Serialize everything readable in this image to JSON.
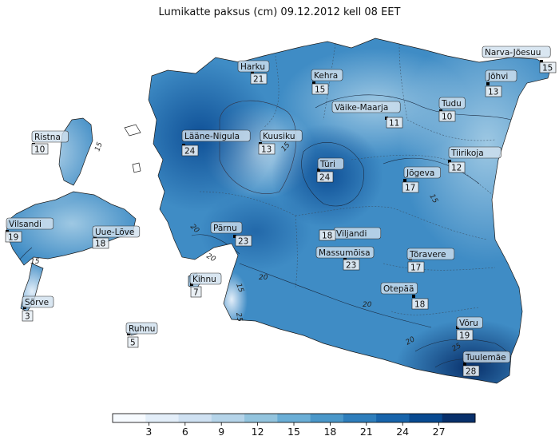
{
  "title": "Lumikatte paksus (cm) 09.12.2012 kell 08 EET",
  "colorbar": {
    "ticks": [
      "3",
      "6",
      "9",
      "12",
      "15",
      "18",
      "21",
      "24",
      "27"
    ],
    "colors": [
      "#f7fbff",
      "#e3eef9",
      "#cfe1f2",
      "#b5d4e9",
      "#93c4de",
      "#6aaed6",
      "#4a97c9",
      "#2e7ebc",
      "#1764ab",
      "#084a91",
      "#08306b"
    ]
  },
  "contour_labels": [
    "15",
    "15",
    "15",
    "15",
    "20",
    "20",
    "20",
    "20",
    "15",
    "20",
    "25",
    "25"
  ],
  "stations": [
    {
      "name": "Harku",
      "value": "21"
    },
    {
      "name": "Kehra",
      "value": "15"
    },
    {
      "name": "Narva-Jõesuu",
      "value": "15"
    },
    {
      "name": "Jõhvi",
      "value": "13"
    },
    {
      "name": "Väike-Maarja",
      "value": "11"
    },
    {
      "name": "Tudu",
      "value": "10"
    },
    {
      "name": "Ristna",
      "value": "10"
    },
    {
      "name": "Lääne-Nigula",
      "value": "24"
    },
    {
      "name": "Kuusiku",
      "value": "13"
    },
    {
      "name": "Türi",
      "value": "24"
    },
    {
      "name": "Tiirikoja",
      "value": "12"
    },
    {
      "name": "Jõgeva",
      "value": "17"
    },
    {
      "name": "Vilsandi",
      "value": "19"
    },
    {
      "name": "Uue-Lõve",
      "value": "18"
    },
    {
      "name": "Pärnu",
      "value": "23"
    },
    {
      "name": "Viljandi",
      "value": "18"
    },
    {
      "name": "Massumõisa",
      "value": "23"
    },
    {
      "name": "Tõravere",
      "value": "17"
    },
    {
      "name": "Kihnu",
      "value": "7"
    },
    {
      "name": "Otepää",
      "value": "18"
    },
    {
      "name": "Sõrve",
      "value": "3"
    },
    {
      "name": "Võru",
      "value": "19"
    },
    {
      "name": "Ruhnu",
      "value": "5"
    },
    {
      "name": "Tuulemäe",
      "value": "28"
    }
  ]
}
